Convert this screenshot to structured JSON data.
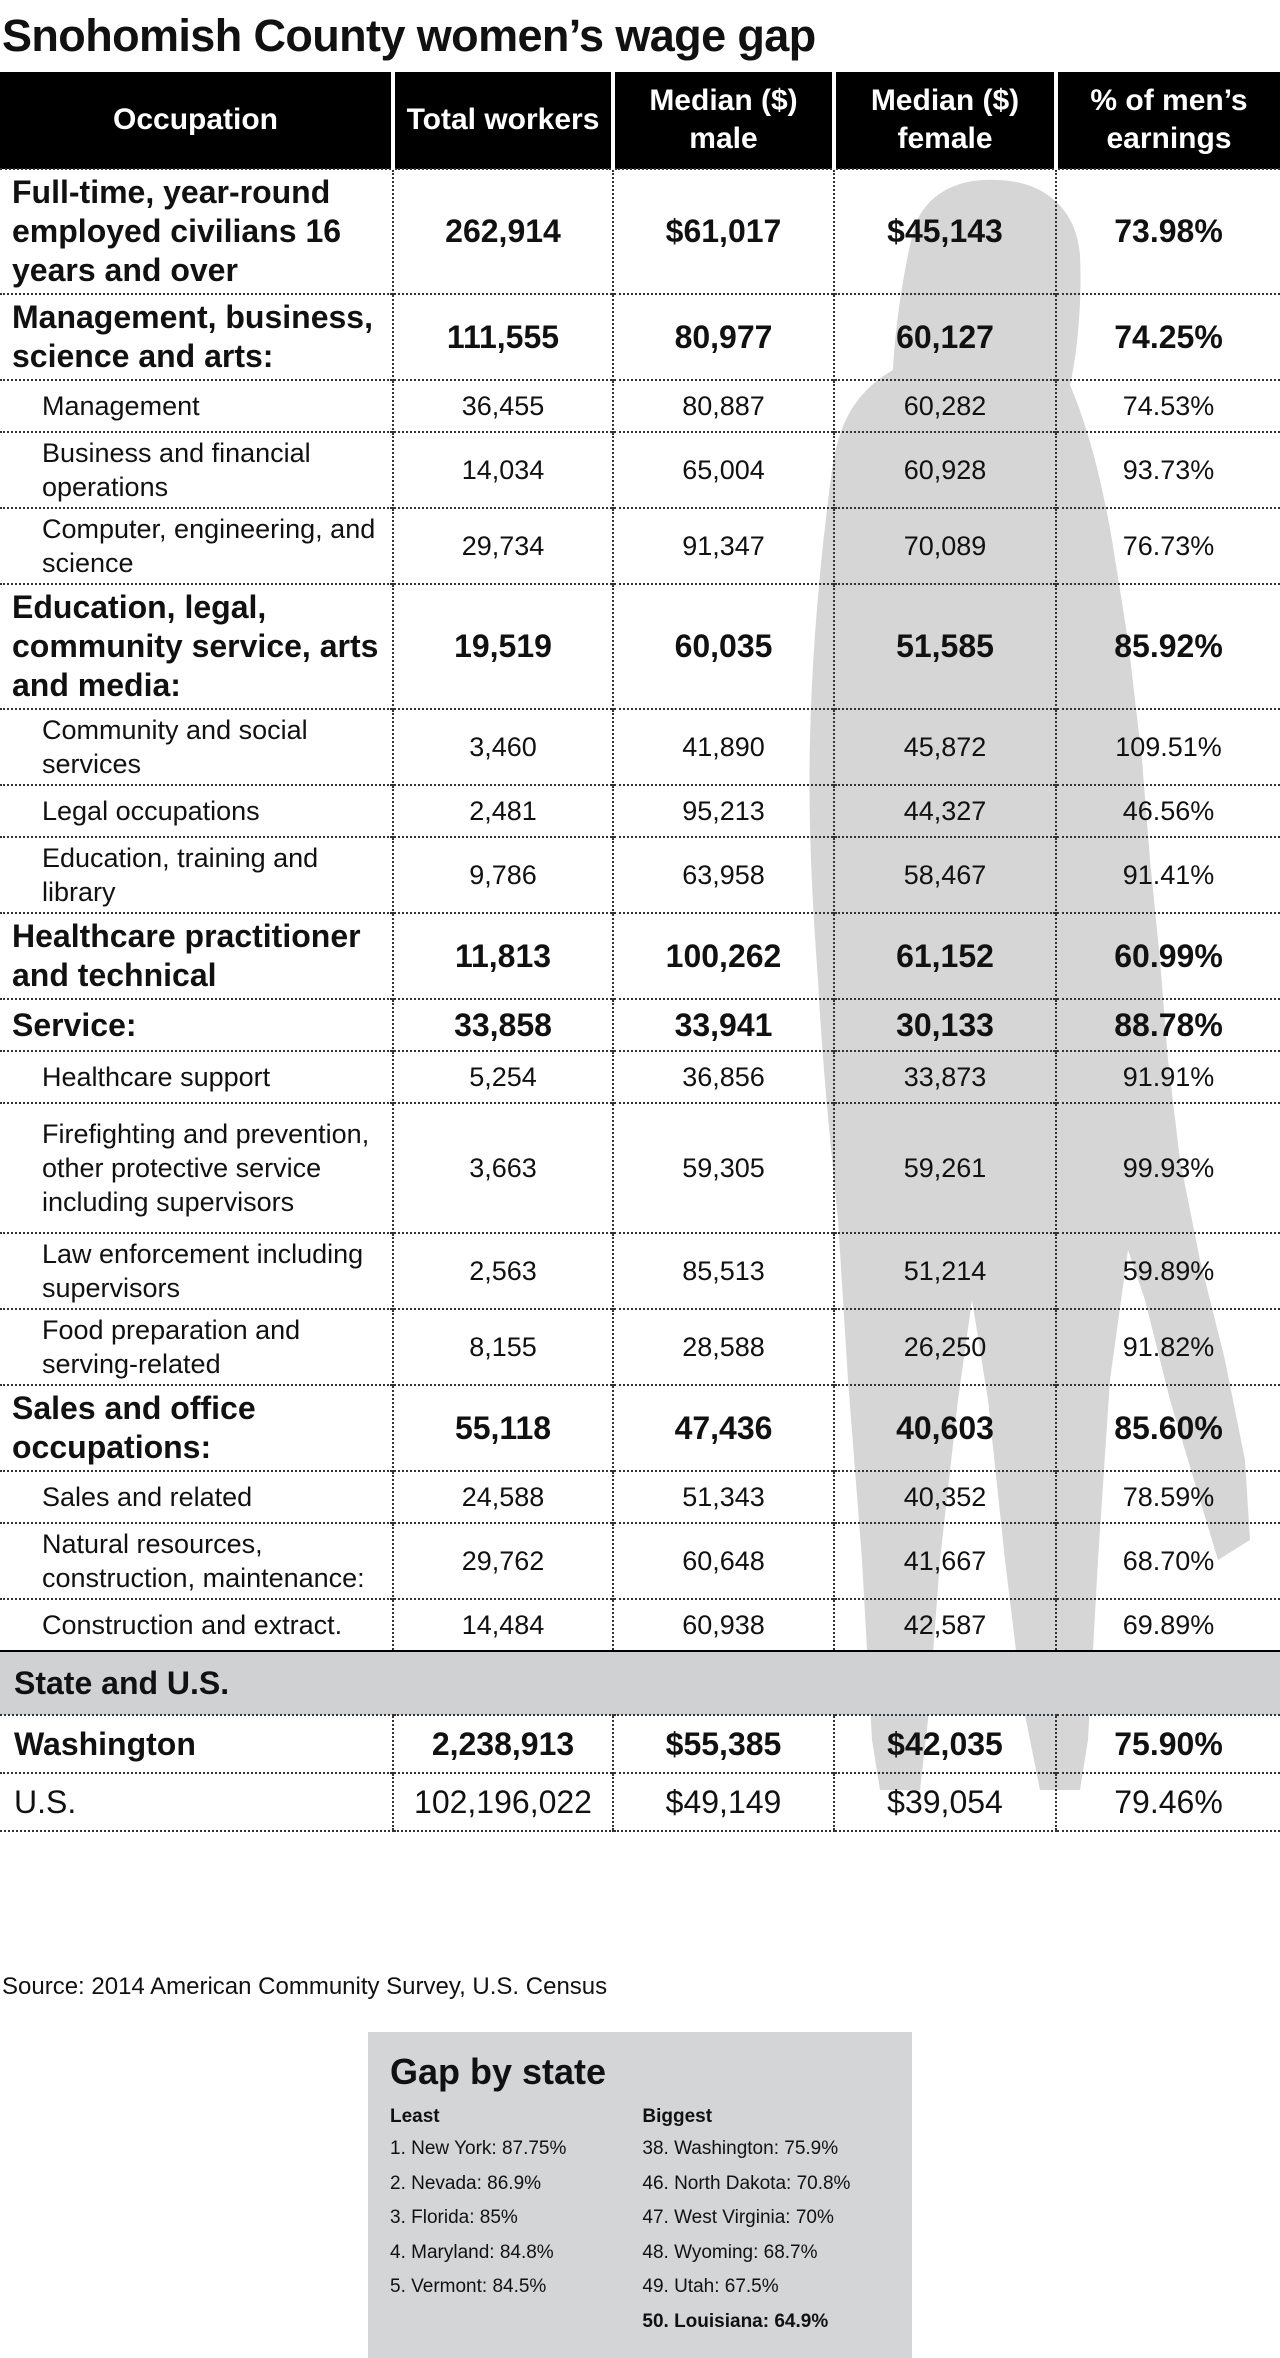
{
  "title": "Snohomish County women’s wage gap",
  "chart_data": {
    "type": "table",
    "columns": [
      "Occupation",
      "Total workers",
      "Median ($) male",
      "Median ($) female",
      "% of men’s earnings"
    ],
    "rows": [
      {
        "kind": "major",
        "occupation": "Full-time, year-round employed civilians 16 years and over",
        "total": "262,914",
        "male": "$61,017",
        "female": "$45,143",
        "pct": "73.98%"
      },
      {
        "kind": "major",
        "occupation": "Management, business, science and arts:",
        "total": "111,555",
        "male": "80,977",
        "female": "60,127",
        "pct": "74.25%"
      },
      {
        "kind": "sub",
        "occupation": "Management",
        "total": "36,455",
        "male": "80,887",
        "female": "60,282",
        "pct": "74.53%"
      },
      {
        "kind": "sub",
        "occupation": "Business and financial operations",
        "total": "14,034",
        "male": "65,004",
        "female": "60,928",
        "pct": "93.73%"
      },
      {
        "kind": "sub",
        "occupation": "Computer, engineering, and science",
        "total": "29,734",
        "male": "91,347",
        "female": "70,089",
        "pct": "76.73%"
      },
      {
        "kind": "major",
        "occupation": "Education, legal, community service, arts and media:",
        "total": "19,519",
        "male": "60,035",
        "female": "51,585",
        "pct": "85.92%"
      },
      {
        "kind": "sub",
        "occupation": "Community and social services",
        "total": "3,460",
        "male": "41,890",
        "female": "45,872",
        "pct": "109.51%"
      },
      {
        "kind": "sub",
        "occupation": "Legal occupations",
        "total": "2,481",
        "male": "95,213",
        "female": "44,327",
        "pct": "46.56%"
      },
      {
        "kind": "sub",
        "occupation": "Education, training and library",
        "total": "9,786",
        "male": "63,958",
        "female": "58,467",
        "pct": "91.41%"
      },
      {
        "kind": "major",
        "occupation": "Healthcare practitioner and technical",
        "total": "11,813",
        "male": "100,262",
        "female": "61,152",
        "pct": "60.99%"
      },
      {
        "kind": "major",
        "occupation": "Service:",
        "total": "33,858",
        "male": "33,941",
        "female": "30,133",
        "pct": "88.78%"
      },
      {
        "kind": "sub",
        "occupation": "Healthcare support",
        "total": "5,254",
        "male": "36,856",
        "female": "33,873",
        "pct": "91.91%"
      },
      {
        "kind": "sub",
        "occupation": "Firefighting and prevention, other protective service including supervisors",
        "total": "3,663",
        "male": "59,305",
        "female": "59,261",
        "pct": "99.93%"
      },
      {
        "kind": "sub",
        "occupation": "Law enforcement including supervisors",
        "total": "2,563",
        "male": "85,513",
        "female": "51,214",
        "pct": "59.89%"
      },
      {
        "kind": "sub",
        "occupation": "Food preparation and serving-related",
        "total": "8,155",
        "male": "28,588",
        "female": "26,250",
        "pct": "91.82%"
      },
      {
        "kind": "major",
        "occupation": "Sales and office occupations:",
        "total": "55,118",
        "male": "47,436",
        "female": "40,603",
        "pct": "85.60%"
      },
      {
        "kind": "sub",
        "occupation": "Sales and related",
        "total": "24,588",
        "male": "51,343",
        "female": "40,352",
        "pct": "78.59%"
      },
      {
        "kind": "sub",
        "occupation": "Natural resources, construction, maintenance:",
        "total": "29,762",
        "male": "60,648",
        "female": "41,667",
        "pct": "68.70%"
      },
      {
        "kind": "sub",
        "occupation": "Construction and extract.",
        "total": "14,484",
        "male": "60,938",
        "female": "42,587",
        "pct": "69.89%"
      }
    ],
    "section_label": "State and U.S.",
    "state_rows": [
      {
        "kind": "wa",
        "occupation": "Washington",
        "total": "2,238,913",
        "male": "$55,385",
        "female": "$42,035",
        "pct": "75.90%"
      },
      {
        "kind": "us",
        "occupation": "U.S.",
        "total": "102,196,022",
        "male": "$49,149",
        "female": "$39,054",
        "pct": "79.46%"
      }
    ]
  },
  "source": "Source: 2014 American Community Survey, U.S. Census",
  "gap_by_state": {
    "title": "Gap by state",
    "least_label": "Least",
    "biggest_label": "Biggest",
    "least": [
      "1. New York: 87.75%",
      "2. Nevada: 86.9%",
      "3. Florida: 85%",
      "4. Maryland: 84.8%",
      "5. Vermont: 84.5%"
    ],
    "biggest": [
      "38. Washington: 75.9%",
      "46. North Dakota: 70.8%",
      "47. West Virginia: 70%",
      "48. Wyoming: 68.7%",
      "49. Utah: 67.5%",
      "50. Louisiana: 64.9%"
    ]
  },
  "colors": {
    "header_bg": "#000000",
    "section_bg": "#cfd1d3",
    "panel_bg": "#d3d5d7",
    "silhouette": "#d6d6d6"
  }
}
